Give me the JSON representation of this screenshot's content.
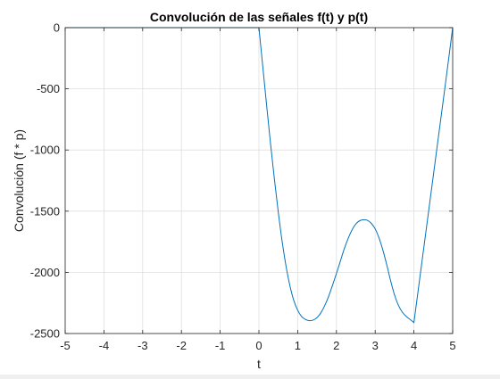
{
  "chart_data": {
    "type": "line",
    "title": "Convolución de las señales f(t) y p(t)",
    "xlabel": "t",
    "ylabel": "Convolución (f * p)",
    "xlim": [
      -5,
      5
    ],
    "ylim": [
      -2500,
      0
    ],
    "xticks": [
      -5,
      -4,
      -3,
      -2,
      -1,
      0,
      1,
      2,
      3,
      4,
      5
    ],
    "yticks": [
      0,
      -500,
      -1000,
      -1500,
      -2000,
      -2500
    ],
    "xtick_labels": [
      "-5",
      "-4",
      "-3",
      "-2",
      "-1",
      "0",
      "1",
      "2",
      "3",
      "4",
      "5"
    ],
    "ytick_labels": [
      "0",
      "-500",
      "-1000",
      "-1500",
      "-2000",
      "-2500"
    ],
    "grid": true,
    "series": [
      {
        "color": "#0072bd",
        "x": [
          -5,
          -4,
          -3,
          -2,
          -1,
          0,
          0.1,
          0.2,
          0.3,
          0.4,
          0.5,
          0.6,
          0.7,
          0.8,
          0.9,
          1.0,
          1.1,
          1.2,
          1.3,
          1.4,
          1.5,
          1.6,
          1.7,
          1.8,
          1.9,
          2.0,
          2.1,
          2.2,
          2.3,
          2.4,
          2.5,
          2.6,
          2.7,
          2.8,
          2.9,
          3.0,
          3.1,
          3.2,
          3.3,
          3.4,
          3.5,
          3.6,
          3.7,
          3.8,
          3.9,
          4.0,
          4.2,
          4.4,
          4.6,
          4.8,
          5.0
        ],
        "y": [
          0,
          0,
          0,
          0,
          0,
          0,
          -320,
          -640,
          -950,
          -1240,
          -1510,
          -1750,
          -1950,
          -2110,
          -2230,
          -2310,
          -2360,
          -2385,
          -2395,
          -2390,
          -2370,
          -2330,
          -2270,
          -2195,
          -2105,
          -2010,
          -1910,
          -1810,
          -1725,
          -1655,
          -1605,
          -1578,
          -1570,
          -1575,
          -1600,
          -1645,
          -1720,
          -1820,
          -1940,
          -2070,
          -2185,
          -2270,
          -2325,
          -2360,
          -2385,
          -2410,
          -1930,
          -1450,
          -970,
          -490,
          0
        ]
      }
    ]
  }
}
